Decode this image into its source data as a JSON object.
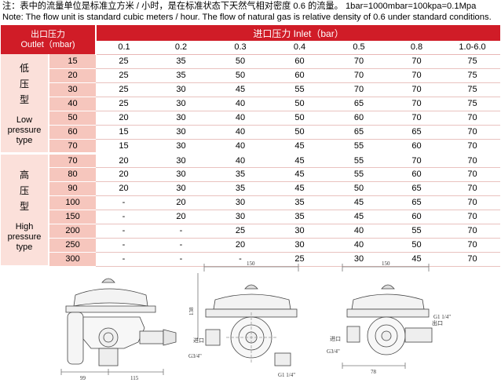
{
  "notes": {
    "line1": "注：表中的流量单位是标准立方米 / 小时，是在标准状态下天然气相对密度 0.6 的流量。 1bar=1000mbar=100kpa=0.1Mpa",
    "line2": "Note: The flow unit is standard cubic meters / hour. The flow of natural gas is relative density of 0.6 under standard conditions."
  },
  "table": {
    "outlet_header_cn": "出口压力",
    "outlet_header_en": "Outlet（mbar)",
    "inlet_header": "进口压力 Inlet（bar）",
    "inlet_columns": [
      "0.1",
      "0.2",
      "0.3",
      "0.4",
      "0.5",
      "0.8",
      "1.0-6.0"
    ],
    "groups": [
      {
        "label_cn": [
          "低",
          "压",
          "型"
        ],
        "label_en": [
          "Low",
          "pressure",
          "type"
        ],
        "rows": [
          {
            "outlet": "15",
            "values": [
              "25",
              "35",
              "50",
              "60",
              "70",
              "70",
              "75"
            ]
          },
          {
            "outlet": "20",
            "values": [
              "25",
              "35",
              "50",
              "60",
              "70",
              "70",
              "75"
            ]
          },
          {
            "outlet": "30",
            "values": [
              "25",
              "30",
              "45",
              "55",
              "70",
              "70",
              "75"
            ]
          },
          {
            "outlet": "40",
            "values": [
              "25",
              "30",
              "40",
              "50",
              "65",
              "70",
              "75"
            ]
          },
          {
            "outlet": "50",
            "values": [
              "20",
              "30",
              "40",
              "50",
              "60",
              "70",
              "70"
            ]
          },
          {
            "outlet": "60",
            "values": [
              "15",
              "30",
              "40",
              "50",
              "65",
              "65",
              "70"
            ]
          },
          {
            "outlet": "70",
            "values": [
              "15",
              "30",
              "40",
              "45",
              "55",
              "60",
              "70"
            ]
          }
        ]
      },
      {
        "label_cn": [
          "高",
          "压",
          "型"
        ],
        "label_en": [
          "High",
          "pressure",
          "type"
        ],
        "rows": [
          {
            "outlet": "70",
            "values": [
              "20",
              "30",
              "40",
              "45",
              "55",
              "70",
              "70"
            ]
          },
          {
            "outlet": "80",
            "values": [
              "20",
              "30",
              "35",
              "45",
              "55",
              "60",
              "70"
            ]
          },
          {
            "outlet": "90",
            "values": [
              "20",
              "30",
              "35",
              "45",
              "50",
              "65",
              "70"
            ]
          },
          {
            "outlet": "100",
            "values": [
              "-",
              "20",
              "30",
              "35",
              "45",
              "65",
              "70"
            ]
          },
          {
            "outlet": "150",
            "values": [
              "-",
              "20",
              "30",
              "35",
              "45",
              "60",
              "70"
            ]
          },
          {
            "outlet": "200",
            "values": [
              "-",
              "-",
              "25",
              "30",
              "40",
              "55",
              "70"
            ]
          },
          {
            "outlet": "250",
            "values": [
              "-",
              "-",
              "20",
              "30",
              "40",
              "50",
              "70"
            ]
          },
          {
            "outlet": "300",
            "values": [
              "-",
              "-",
              "-",
              "25",
              "30",
              "45",
              "70"
            ]
          }
        ]
      }
    ]
  },
  "drawings": {
    "dim_99": "99",
    "dim_115": "115",
    "dim_150_a": "150",
    "dim_138": "138",
    "dim_150_b": "150",
    "inlet_a": "进口",
    "thread_g34_a": "G3/4\"",
    "thread_g114_a": "G1 1/4\"",
    "thread_g114_b": "G1 1/4\"",
    "outlet_b": "出口",
    "inlet_b": "进口",
    "thread_g34_b": "G3/4\"",
    "dim_78": "78"
  }
}
